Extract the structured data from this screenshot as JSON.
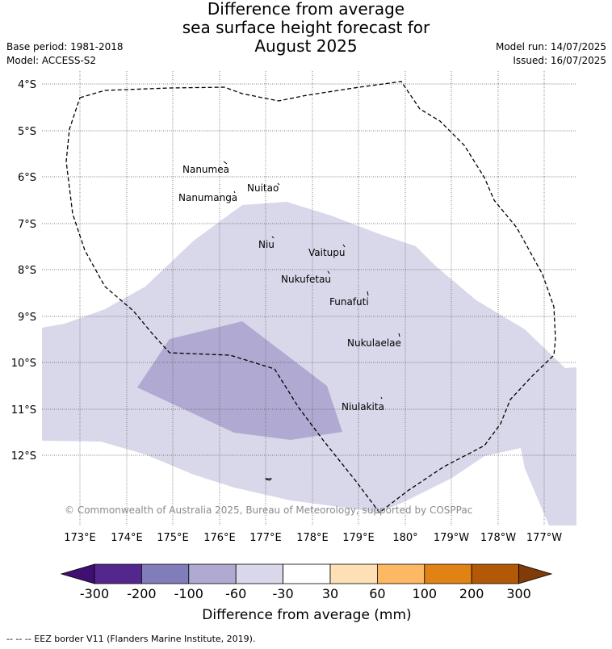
{
  "title": {
    "line1": "Difference from average",
    "line2": "sea surface height forecast for",
    "line3": "August 2025"
  },
  "meta": {
    "base_period": "Base period: 1981-2018",
    "model": "Model: ACCESS-S2",
    "model_run": "Model run: 14/07/2025",
    "issued": "Issued: 16/07/2025"
  },
  "map": {
    "lat_labels": [
      "4°S",
      "5°S",
      "6°S",
      "7°S",
      "8°S",
      "9°S",
      "10°S",
      "11°S",
      "12°S"
    ],
    "lon_labels": [
      "173°E",
      "174°E",
      "175°E",
      "176°E",
      "177°E",
      "178°E",
      "179°E",
      "180°",
      "179°W",
      "178°W",
      "177°W"
    ],
    "places": [
      {
        "name": "Nanumea"
      },
      {
        "name": "Nuitao"
      },
      {
        "name": "Nanumanga"
      },
      {
        "name": "Niu"
      },
      {
        "name": "Vaitupu"
      },
      {
        "name": "Nukufetau"
      },
      {
        "name": "Funafuti"
      },
      {
        "name": "Nukulaelae"
      },
      {
        "name": "Niulakita"
      }
    ],
    "copyright": "© Commonwealth of Australia 2025, Bureau of Meteorology, supported by COSPPac",
    "fill_light_color": "#d8d8ea",
    "fill_medium_color": "#b0aad2"
  },
  "colorbar": {
    "label": "Difference from average (mm)",
    "ticks": [
      "-300",
      "-200",
      "-100",
      "-60",
      "-30",
      "30",
      "60",
      "100",
      "200",
      "300"
    ],
    "colors": [
      "#3f0f72",
      "#54278f",
      "#807dba",
      "#b0aad2",
      "#d8d8ea",
      "#ffffff",
      "#fee0b6",
      "#fdb863",
      "#e08214",
      "#b35806",
      "#7f3b08"
    ]
  },
  "footer": {
    "eez_legend": "--  --  -- EEZ border V11 (Flanders Marine Institute, 2019)."
  }
}
